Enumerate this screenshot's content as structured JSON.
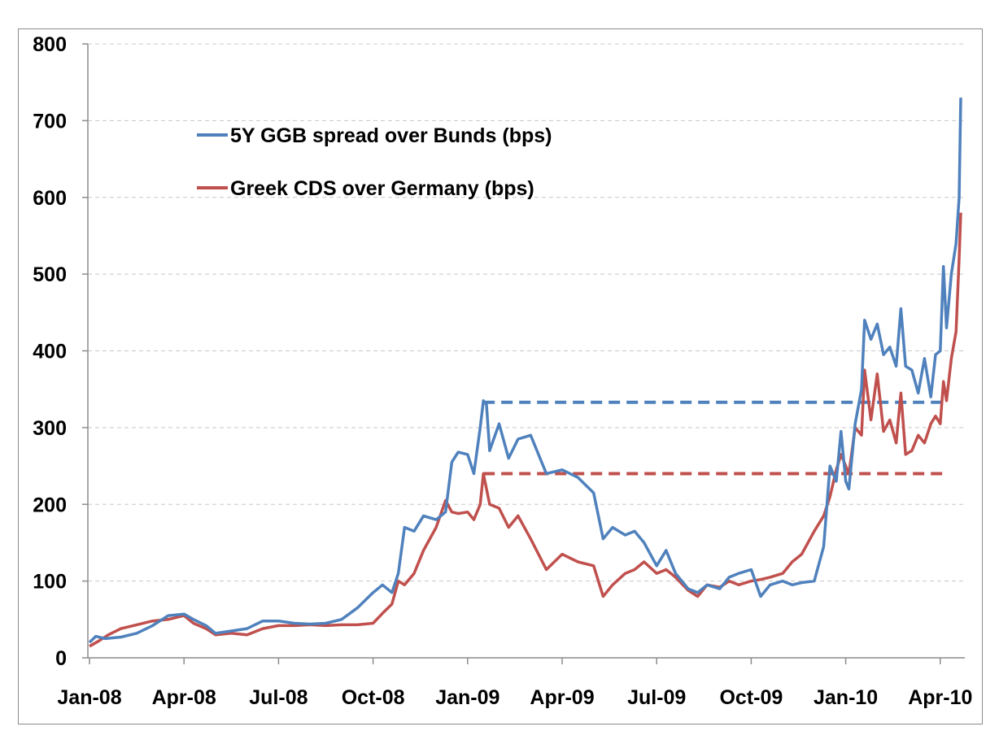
{
  "chart_data": {
    "type": "line",
    "title": "",
    "xlabel": "",
    "ylabel": "",
    "ylim": [
      0,
      800
    ],
    "yticks": [
      0,
      100,
      200,
      300,
      400,
      500,
      600,
      700,
      800
    ],
    "xticks": [
      "Jan-08",
      "Apr-08",
      "Jul-08",
      "Oct-08",
      "Jan-09",
      "Apr-09",
      "Jul-09",
      "Oct-09",
      "Jan-10",
      "Apr-10"
    ],
    "grid": "horizontal dashed",
    "legend_position": "top-left",
    "series": [
      {
        "name": "5Y GGB spread over Bunds (bps)",
        "color": "#4F81BD",
        "points": [
          [
            "Jan-08",
            20
          ],
          [
            "Jan-08+0.2",
            28
          ],
          [
            "Jan-08+0.5",
            25
          ],
          [
            "Jan-08+1",
            27
          ],
          [
            "Jan-08+1.5",
            32
          ],
          [
            "Jan-08+2",
            42
          ],
          [
            "Jan-08+2.5",
            55
          ],
          [
            "Apr-08",
            57
          ],
          [
            "Apr-08+0.3",
            50
          ],
          [
            "Apr-08+0.7",
            42
          ],
          [
            "Apr-08+1",
            32
          ],
          [
            "Apr-08+1.5",
            35
          ],
          [
            "Apr-08+2",
            38
          ],
          [
            "Apr-08+2.5",
            48
          ],
          [
            "Jul-08",
            48
          ],
          [
            "Jul-08+0.5",
            45
          ],
          [
            "Jul-08+1",
            44
          ],
          [
            "Jul-08+1.5",
            45
          ],
          [
            "Jul-08+2",
            50
          ],
          [
            "Jul-08+2.5",
            65
          ],
          [
            "Oct-08",
            85
          ],
          [
            "Oct-08+0.3",
            95
          ],
          [
            "Oct-08+0.6",
            85
          ],
          [
            "Oct-08+0.8",
            110
          ],
          [
            "Oct-08+1",
            170
          ],
          [
            "Oct-08+1.3",
            165
          ],
          [
            "Oct-08+1.6",
            185
          ],
          [
            "Oct-08+2",
            180
          ],
          [
            "Oct-08+2.3",
            190
          ],
          [
            "Oct-08+2.5",
            255
          ],
          [
            "Oct-08+2.7",
            268
          ],
          [
            "Jan-09",
            265
          ],
          [
            "Jan-09+0.2",
            240
          ],
          [
            "Jan-09+0.4",
            300
          ],
          [
            "Jan-09+0.5",
            335
          ],
          [
            "Jan-09+0.6",
            330
          ],
          [
            "Jan-09+0.7",
            270
          ],
          [
            "Jan-09+1",
            305
          ],
          [
            "Jan-09+1.3",
            260
          ],
          [
            "Jan-09+1.6",
            285
          ],
          [
            "Jan-09+2",
            290
          ],
          [
            "Jan-09+2.5",
            240
          ],
          [
            "Apr-09",
            245
          ],
          [
            "Apr-09+0.5",
            235
          ],
          [
            "Apr-09+1",
            215
          ],
          [
            "Apr-09+1.3",
            155
          ],
          [
            "Apr-09+1.6",
            170
          ],
          [
            "Apr-09+2",
            160
          ],
          [
            "Apr-09+2.3",
            165
          ],
          [
            "Apr-09+2.6",
            150
          ],
          [
            "Jul-09",
            120
          ],
          [
            "Jul-09+0.3",
            140
          ],
          [
            "Jul-09+0.6",
            110
          ],
          [
            "Jul-09+1",
            90
          ],
          [
            "Jul-09+1.3",
            85
          ],
          [
            "Jul-09+1.6",
            95
          ],
          [
            "Jul-09+2",
            90
          ],
          [
            "Jul-09+2.3",
            105
          ],
          [
            "Jul-09+2.6",
            110
          ],
          [
            "Oct-09",
            115
          ],
          [
            "Oct-09+0.3",
            80
          ],
          [
            "Oct-09+0.6",
            95
          ],
          [
            "Oct-09+1",
            100
          ],
          [
            "Oct-09+1.3",
            95
          ],
          [
            "Oct-09+1.6",
            98
          ],
          [
            "Oct-09+2",
            100
          ],
          [
            "Oct-09+2.3",
            145
          ],
          [
            "Oct-09+2.5",
            250
          ],
          [
            "Oct-09+2.7",
            230
          ],
          [
            "Oct-09+2.85",
            295
          ],
          [
            "Jan-10",
            230
          ],
          [
            "Jan-10+0.1",
            220
          ],
          [
            "Jan-10+0.3",
            305
          ],
          [
            "Jan-10+0.5",
            350
          ],
          [
            "Jan-10+0.6",
            440
          ],
          [
            "Jan-10+0.8",
            415
          ],
          [
            "Jan-10+1",
            435
          ],
          [
            "Jan-10+1.2",
            395
          ],
          [
            "Jan-10+1.4",
            405
          ],
          [
            "Jan-10+1.6",
            380
          ],
          [
            "Jan-10+1.75",
            455
          ],
          [
            "Jan-10+1.9",
            380
          ],
          [
            "Jan-10+2.1",
            375
          ],
          [
            "Jan-10+2.3",
            345
          ],
          [
            "Jan-10+2.5",
            390
          ],
          [
            "Jan-10+2.7",
            340
          ],
          [
            "Jan-10+2.85",
            395
          ],
          [
            "Apr-10",
            400
          ],
          [
            "Apr-10+0.1",
            510
          ],
          [
            "Apr-10+0.2",
            430
          ],
          [
            "Apr-10+0.35",
            500
          ],
          [
            "Apr-10+0.5",
            540
          ],
          [
            "Apr-10+0.6",
            600
          ],
          [
            "Apr-10+0.65",
            730
          ]
        ]
      },
      {
        "name": "Greek CDS over Germany (bps)",
        "color": "#C0504D",
        "points": [
          [
            "Jan-08",
            15
          ],
          [
            "Jan-08+0.3",
            22
          ],
          [
            "Jan-08+0.6",
            30
          ],
          [
            "Jan-08+1",
            38
          ],
          [
            "Jan-08+1.5",
            43
          ],
          [
            "Jan-08+2",
            48
          ],
          [
            "Jan-08+2.5",
            50
          ],
          [
            "Apr-08",
            55
          ],
          [
            "Apr-08+0.3",
            45
          ],
          [
            "Apr-08+0.7",
            38
          ],
          [
            "Apr-08+1",
            30
          ],
          [
            "Apr-08+1.5",
            32
          ],
          [
            "Apr-08+2",
            30
          ],
          [
            "Apr-08+2.5",
            38
          ],
          [
            "Jul-08",
            42
          ],
          [
            "Jul-08+0.5",
            42
          ],
          [
            "Jul-08+1",
            43
          ],
          [
            "Jul-08+1.5",
            42
          ],
          [
            "Jul-08+2",
            43
          ],
          [
            "Jul-08+2.5",
            43
          ],
          [
            "Oct-08",
            45
          ],
          [
            "Oct-08+0.3",
            58
          ],
          [
            "Oct-08+0.6",
            70
          ],
          [
            "Oct-08+0.8",
            100
          ],
          [
            "Oct-08+1",
            95
          ],
          [
            "Oct-08+1.3",
            110
          ],
          [
            "Oct-08+1.6",
            140
          ],
          [
            "Oct-08+2",
            170
          ],
          [
            "Oct-08+2.3",
            205
          ],
          [
            "Oct-08+2.5",
            190
          ],
          [
            "Oct-08+2.7",
            188
          ],
          [
            "Jan-09",
            190
          ],
          [
            "Jan-09+0.2",
            180
          ],
          [
            "Jan-09+0.4",
            200
          ],
          [
            "Jan-09+0.5",
            240
          ],
          [
            "Jan-09+0.7",
            200
          ],
          [
            "Jan-09+1",
            195
          ],
          [
            "Jan-09+1.3",
            170
          ],
          [
            "Jan-09+1.6",
            185
          ],
          [
            "Jan-09+2",
            155
          ],
          [
            "Jan-09+2.5",
            115
          ],
          [
            "Apr-09",
            135
          ],
          [
            "Apr-09+0.5",
            125
          ],
          [
            "Apr-09+1",
            120
          ],
          [
            "Apr-09+1.3",
            80
          ],
          [
            "Apr-09+1.6",
            95
          ],
          [
            "Apr-09+2",
            110
          ],
          [
            "Apr-09+2.3",
            115
          ],
          [
            "Apr-09+2.6",
            125
          ],
          [
            "Jul-09",
            110
          ],
          [
            "Jul-09+0.3",
            115
          ],
          [
            "Jul-09+0.6",
            105
          ],
          [
            "Jul-09+1",
            88
          ],
          [
            "Jul-09+1.3",
            80
          ],
          [
            "Jul-09+1.6",
            95
          ],
          [
            "Jul-09+2",
            92
          ],
          [
            "Jul-09+2.3",
            100
          ],
          [
            "Jul-09+2.6",
            95
          ],
          [
            "Oct-09",
            100
          ],
          [
            "Oct-09+0.3",
            102
          ],
          [
            "Oct-09+0.6",
            105
          ],
          [
            "Oct-09+1",
            110
          ],
          [
            "Oct-09+1.3",
            125
          ],
          [
            "Oct-09+1.6",
            135
          ],
          [
            "Oct-09+2",
            165
          ],
          [
            "Oct-09+2.3",
            185
          ],
          [
            "Oct-09+2.5",
            210
          ],
          [
            "Oct-09+2.7",
            245
          ],
          [
            "Oct-09+2.85",
            265
          ],
          [
            "Jan-10",
            250
          ],
          [
            "Jan-10+0.1",
            240
          ],
          [
            "Jan-10+0.3",
            300
          ],
          [
            "Jan-10+0.5",
            290
          ],
          [
            "Jan-10+0.6",
            375
          ],
          [
            "Jan-10+0.8",
            310
          ],
          [
            "Jan-10+1",
            370
          ],
          [
            "Jan-10+1.2",
            295
          ],
          [
            "Jan-10+1.4",
            310
          ],
          [
            "Jan-10+1.6",
            280
          ],
          [
            "Jan-10+1.75",
            345
          ],
          [
            "Jan-10+1.9",
            265
          ],
          [
            "Jan-10+2.1",
            270
          ],
          [
            "Jan-10+2.3",
            290
          ],
          [
            "Jan-10+2.5",
            280
          ],
          [
            "Jan-10+2.7",
            305
          ],
          [
            "Jan-10+2.85",
            315
          ],
          [
            "Apr-10",
            305
          ],
          [
            "Apr-10+0.1",
            360
          ],
          [
            "Apr-10+0.2",
            335
          ],
          [
            "Apr-10+0.35",
            390
          ],
          [
            "Apr-10+0.5",
            425
          ],
          [
            "Apr-10+0.6",
            520
          ],
          [
            "Apr-10+0.65",
            580
          ]
        ]
      }
    ],
    "reference_lines": [
      {
        "series": "5Y GGB spread over Bunds (bps)",
        "value": 333,
        "from": "Jan-09+0.5",
        "to": "Apr-10+0.2",
        "style": "dashed",
        "color": "#4F81BD"
      },
      {
        "series": "Greek CDS over Germany (bps)",
        "value": 240,
        "from": "Jan-09+0.5",
        "to": "Apr-10+0.2",
        "style": "dashed",
        "color": "#C0504D"
      }
    ]
  }
}
